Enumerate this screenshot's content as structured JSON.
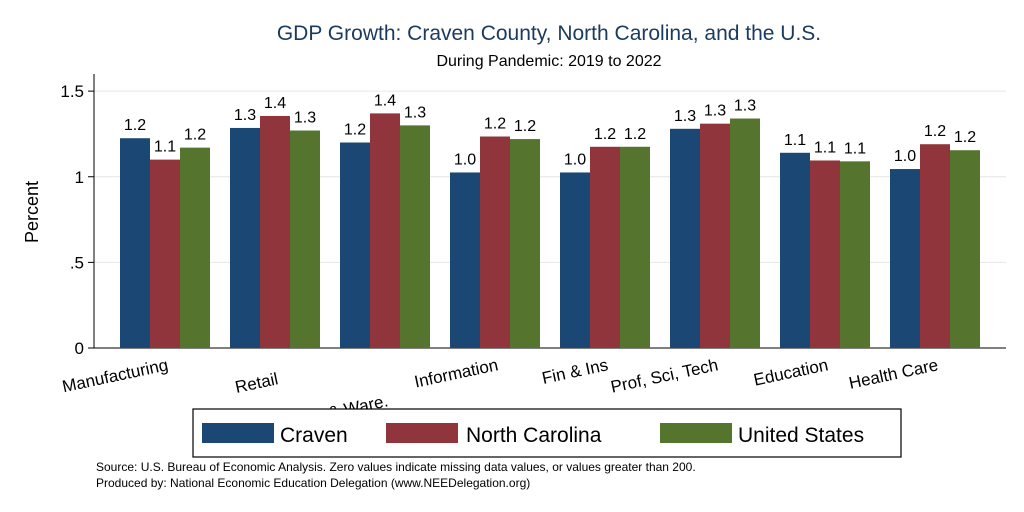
{
  "chart_data": {
    "type": "bar",
    "title": "GDP Growth: Craven County, North Carolina, and the U.S.",
    "subtitle": "During Pandemic: 2019 to 2022",
    "ylabel": "Percent",
    "xlabel": "",
    "ylim": [
      0,
      1.6
    ],
    "yticks": [
      {
        "value": 0,
        "label": "0"
      },
      {
        "value": 0.5,
        "label": ".5"
      },
      {
        "value": 1,
        "label": "1"
      },
      {
        "value": 1.5,
        "label": "1.5"
      }
    ],
    "grid": true,
    "categories": [
      "Manufacturing",
      "Retail",
      "Trans. & Ware.",
      "Information",
      "Fin & Ins",
      "Prof, Sci, Tech",
      "Education",
      "Health Care"
    ],
    "series": [
      {
        "name": "Craven",
        "color": "#1a4773",
        "values": [
          1.225,
          1.285,
          1.2,
          1.025,
          1.025,
          1.28,
          1.14,
          1.045
        ],
        "labels": [
          "1.2",
          "1.3",
          "1.2",
          "1.0",
          "1.0",
          "1.3",
          "1.1",
          "1.0"
        ]
      },
      {
        "name": "North Carolina",
        "color": "#90353b",
        "values": [
          1.1,
          1.355,
          1.37,
          1.235,
          1.175,
          1.31,
          1.095,
          1.19
        ],
        "labels": [
          "1.1",
          "1.4",
          "1.4",
          "1.2",
          "1.2",
          "1.3",
          "1.1",
          "1.2"
        ]
      },
      {
        "name": "United States",
        "color": "#55752f",
        "values": [
          1.17,
          1.27,
          1.3,
          1.22,
          1.175,
          1.34,
          1.09,
          1.155
        ],
        "labels": [
          "1.2",
          "1.3",
          "1.3",
          "1.2",
          "1.2",
          "1.3",
          "1.1",
          "1.2"
        ]
      }
    ],
    "legend_position": "bottom",
    "notes": [
      "Source: U.S. Bureau of Economic Analysis. Zero values indicate missing data values, or values greater than 200.",
      "Produced by: National Economic Education Delegation (www.NEEDelegation.org)"
    ]
  }
}
